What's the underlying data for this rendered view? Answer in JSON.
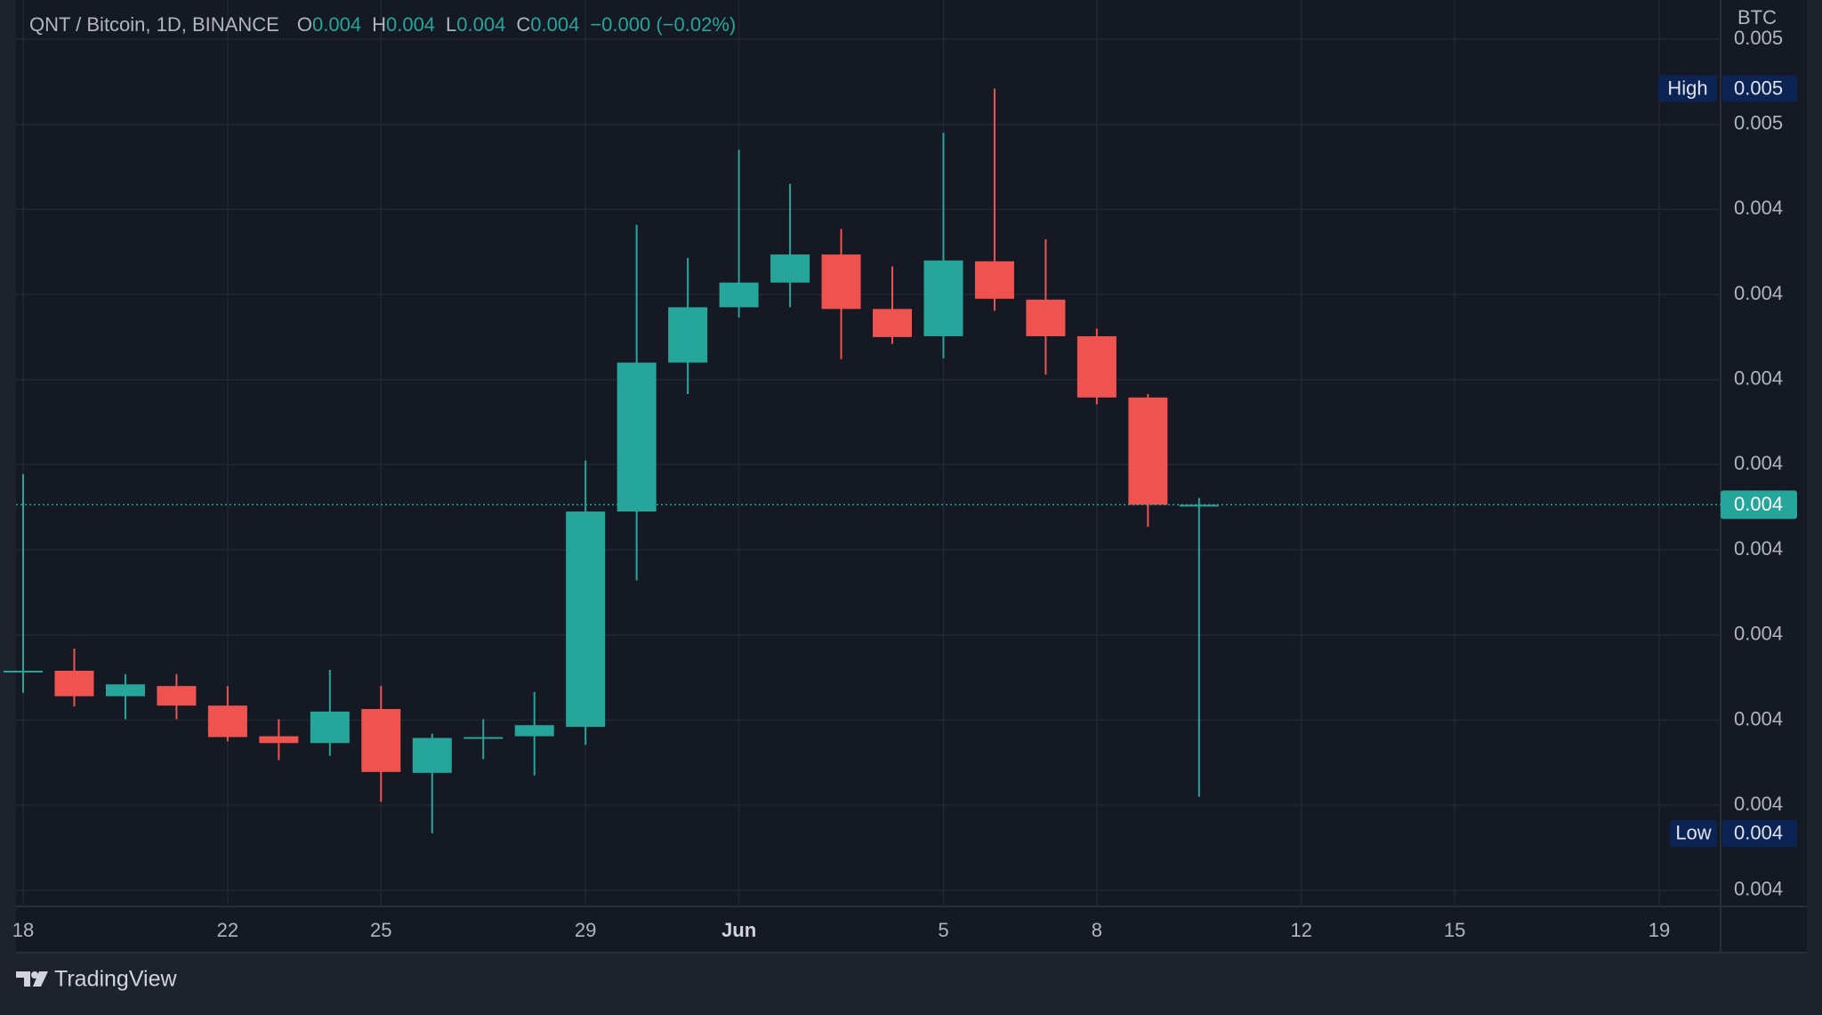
{
  "chart_data": {
    "type": "candlestick",
    "header": {
      "symbol": "QNT / Bitcoin, 1D, BINANCE",
      "ohlc": [
        {
          "key": "O",
          "text": "0.004"
        },
        {
          "key": "H",
          "text": "0.004"
        },
        {
          "key": "L",
          "text": "0.004"
        },
        {
          "key": "C",
          "text": "0.004"
        }
      ],
      "change": "−0.000 (−0.02%)"
    },
    "y_unit": "BTC",
    "categories": [
      "18",
      null,
      null,
      null,
      "22",
      null,
      null,
      "25",
      null,
      null,
      null,
      "29",
      null,
      null,
      "Jun",
      null,
      null,
      null,
      "5",
      null,
      null,
      "8",
      null,
      null,
      null,
      "12",
      null,
      null,
      "15",
      null,
      null,
      null,
      "19"
    ],
    "open": [
      0.003857,
      0.003858,
      0.003828,
      0.00384,
      0.003817,
      0.003781,
      0.003773,
      0.003813,
      0.003738,
      0.003779,
      0.003781,
      0.003792,
      0.004045,
      0.00422,
      0.004285,
      0.004314,
      0.004347,
      0.004283,
      0.004251,
      0.004339,
      0.004294,
      0.004251,
      0.004179,
      0.004052,
      null,
      null,
      null,
      null,
      null,
      null,
      null,
      null,
      null
    ],
    "high": [
      0.004089,
      0.003884,
      0.003854,
      0.003854,
      0.00384,
      0.003801,
      0.003859,
      0.00384,
      0.003784,
      0.003801,
      0.003833,
      0.004105,
      0.004382,
      0.004343,
      0.00447,
      0.00443,
      0.004377,
      0.004333,
      0.00449,
      0.004542,
      0.004365,
      0.00426,
      0.004183,
      0.004061,
      null,
      null,
      null,
      null,
      null,
      null,
      null,
      null,
      null
    ],
    "low": [
      0.003832,
      0.003816,
      0.003801,
      0.003801,
      0.003775,
      0.003753,
      0.003758,
      0.003704,
      0.003667,
      0.003754,
      0.003735,
      0.003771,
      0.003964,
      0.004183,
      0.004273,
      0.004285,
      0.004224,
      0.004242,
      0.004225,
      0.004281,
      0.004206,
      0.004171,
      0.004027,
      0.00371,
      null,
      null,
      null,
      null,
      null,
      null,
      null,
      null,
      null
    ],
    "close": [
      0.003858,
      0.003828,
      0.003842,
      0.003817,
      0.00378,
      0.003773,
      0.00381,
      0.003739,
      0.003779,
      0.00378,
      0.003794,
      0.004045,
      0.00422,
      0.004285,
      0.004314,
      0.004347,
      0.004283,
      0.00425,
      0.00434,
      0.004295,
      0.004251,
      0.004179,
      0.004053,
      0.004053,
      null,
      null,
      null,
      null,
      null,
      null,
      null,
      null,
      null
    ],
    "up_color": "#26a69a",
    "down_color": "#ef5350",
    "ylim": [
      0.003581,
      0.004646
    ],
    "yticks": [
      {
        "value": 0.0036,
        "label": "0.004"
      },
      {
        "value": 0.0037,
        "label": "0.004"
      },
      {
        "value": 0.0038,
        "label": "0.004"
      },
      {
        "value": 0.0039,
        "label": "0.004"
      },
      {
        "value": 0.004,
        "label": "0.004"
      },
      {
        "value": 0.0041,
        "label": "0.004"
      },
      {
        "value": 0.0042,
        "label": "0.004"
      },
      {
        "value": 0.0043,
        "label": "0.004"
      },
      {
        "value": 0.0044,
        "label": "0.004"
      },
      {
        "value": 0.0045,
        "label": "0.005"
      },
      {
        "value": 0.0046,
        "label": "0.005"
      }
    ],
    "grid": true,
    "markers": [
      {
        "name": "High",
        "value": 0.004542,
        "label": "0.005"
      },
      {
        "name": "Low",
        "value": 0.003667,
        "label": "0.004"
      }
    ],
    "last_price": {
      "value": 0.004053,
      "label": "0.004"
    }
  },
  "footer": {
    "brand": "TradingView"
  }
}
